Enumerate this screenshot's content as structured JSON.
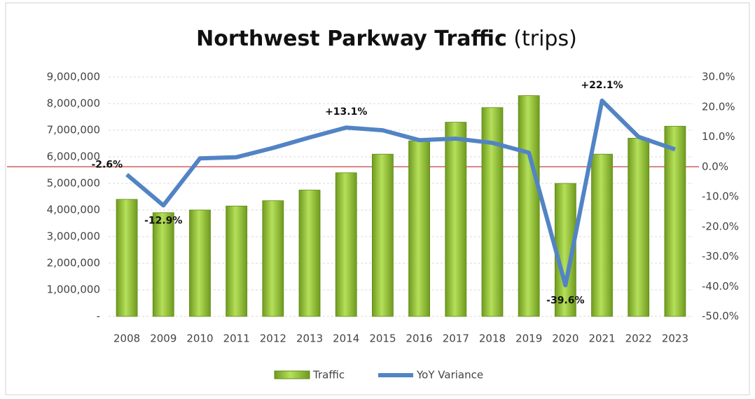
{
  "chart_data": {
    "type": "bar+line",
    "title": "Northwest Parkway Traffic",
    "title_suffix": "(trips)",
    "categories": [
      "2008",
      "2009",
      "2010",
      "2011",
      "2012",
      "2013",
      "2014",
      "2015",
      "2016",
      "2017",
      "2018",
      "2019",
      "2020",
      "2021",
      "2022",
      "2023"
    ],
    "series": [
      {
        "name": "Traffic",
        "type": "bar",
        "color": "#8fbf2a",
        "values": [
          4400000,
          3900000,
          4000000,
          4150000,
          4350000,
          4750000,
          5400000,
          6100000,
          6600000,
          7300000,
          7850000,
          8300000,
          5000000,
          6100000,
          6700000,
          7150000
        ]
      },
      {
        "name": "YoY Variance",
        "type": "line",
        "axis": "y2",
        "color": "#5284c4",
        "values": [
          -2.6,
          -12.9,
          2.8,
          3.2,
          6.3,
          9.8,
          13.1,
          12.2,
          8.9,
          9.4,
          8.0,
          4.7,
          -39.6,
          22.1,
          10.0,
          5.8
        ],
        "value_labels": [
          "-2.6%",
          "-12.9%",
          null,
          null,
          null,
          null,
          "+13.1%",
          null,
          null,
          null,
          null,
          null,
          "-39.6%",
          "+22.1%",
          null,
          null
        ]
      }
    ],
    "ylim": [
      0,
      9000000
    ],
    "yticks": [
      {
        "value": 0,
        "label": "-"
      },
      {
        "value": 1000000,
        "label": "1,000,000"
      },
      {
        "value": 2000000,
        "label": "2,000,000"
      },
      {
        "value": 3000000,
        "label": "3,000,000"
      },
      {
        "value": 4000000,
        "label": "4,000,000"
      },
      {
        "value": 5000000,
        "label": "5,000,000"
      },
      {
        "value": 6000000,
        "label": "6,000,000"
      },
      {
        "value": 7000000,
        "label": "7,000,000"
      },
      {
        "value": 8000000,
        "label": "8,000,000"
      },
      {
        "value": 9000000,
        "label": "9,000,000"
      }
    ],
    "y2lim": [
      -50,
      30
    ],
    "y2ticks": [
      {
        "value": -50,
        "label": "-50.0%"
      },
      {
        "value": -40,
        "label": "-40.0%"
      },
      {
        "value": -30,
        "label": "-30.0%"
      },
      {
        "value": -20,
        "label": "-20.0%"
      },
      {
        "value": -10,
        "label": "-10.0%"
      },
      {
        "value": 0,
        "label": "0.0%"
      },
      {
        "value": 10,
        "label": "10.0%"
      },
      {
        "value": 20,
        "label": "20.0%"
      },
      {
        "value": 30,
        "label": "30.0%"
      }
    ],
    "grid": true,
    "legend": "bottom"
  }
}
